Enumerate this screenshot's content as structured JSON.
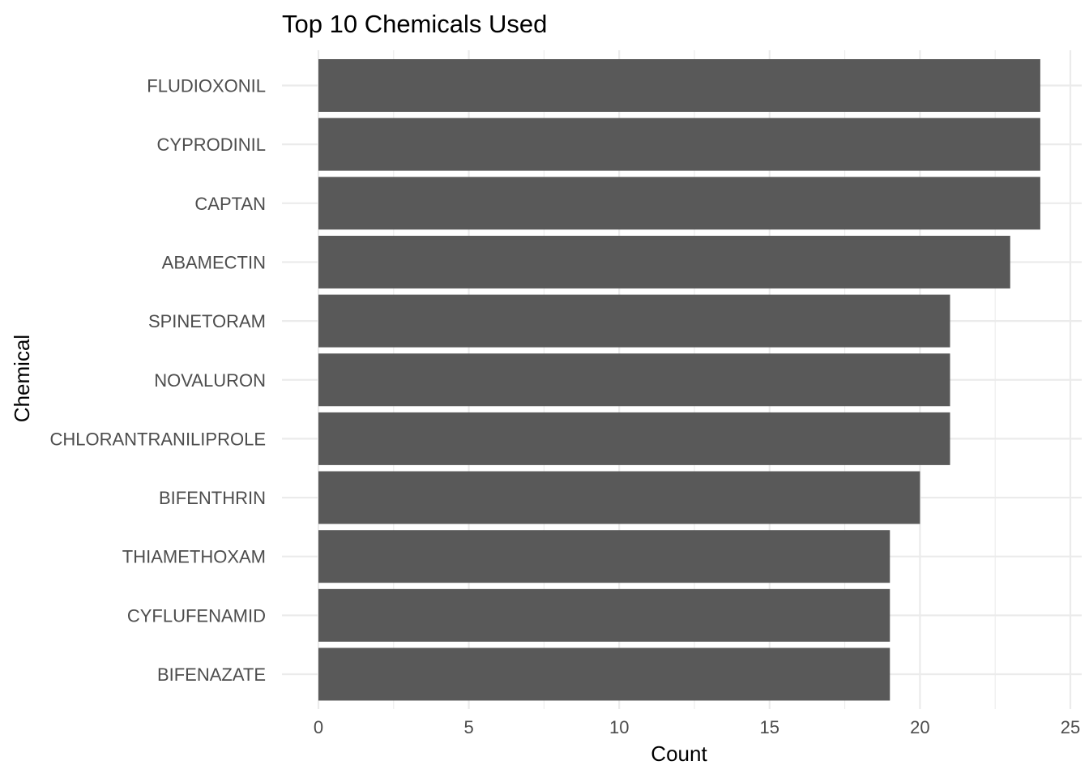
{
  "chart_data": {
    "type": "bar",
    "orientation": "horizontal",
    "title": "Top 10 Chemicals Used",
    "xlabel": "Count",
    "ylabel": "Chemical",
    "categories": [
      "FLUDIOXONIL",
      "CYPRODINIL",
      "CAPTAN",
      "ABAMECTIN",
      "SPINETORAM",
      "NOVALURON",
      "CHLORANTRANILIPROLE",
      "BIFENTHRIN",
      "THIAMETHOXAM",
      "CYFLUFENAMID",
      "BIFENAZATE"
    ],
    "values": [
      24,
      24,
      24,
      23,
      21,
      21,
      21,
      20,
      19,
      19,
      19
    ],
    "xlim": [
      0,
      25
    ],
    "xticks": [
      "0",
      "5",
      "10",
      "15",
      "20",
      "25"
    ],
    "grid": true,
    "legend": "none",
    "colors": {
      "bar": "#595959",
      "grid": "#ebebeb",
      "tick_text": "#4d4d4d",
      "title_text": "#000000"
    }
  }
}
